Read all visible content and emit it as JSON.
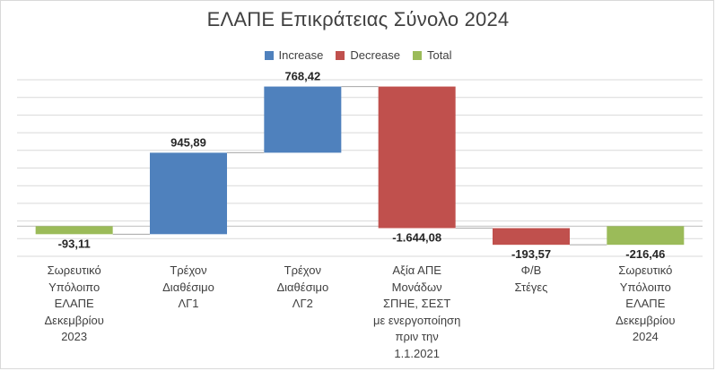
{
  "chart_data": {
    "type": "waterfall",
    "title": "ΕΛΑΠΕ Επικράτειας Σύνολο 2024",
    "legend": [
      {
        "name": "Increase",
        "color": "#4F81BD"
      },
      {
        "name": "Decrease",
        "color": "#C0504D"
      },
      {
        "name": "Total",
        "color": "#9BBB59"
      }
    ],
    "legend_position": "top",
    "grid": true,
    "categories": [
      "Σωρευτικό\nΥπόλοιπο\nΕΛΑΠΕ\nΔεκεμβρίου\n2023",
      "Τρέχον\nΔιαθέσιμο\nΛΓ1",
      "Τρέχον\nΔιαθέσιμο\nΛΓ2",
      "Αξία ΑΠΕ\nΜονάδων\nΣΠΗΕ, ΣΕΣΤ\nμε ενεργοποίηση\nπριν την\n1.1.2021",
      "Φ/Β\nΣτέγες",
      "Σωρευτικό\nΥπόλοιπο\nΕΛΑΠΕ\nΔεκεμβρίου\n2024"
    ],
    "values": [
      -93.11,
      945.89,
      768.42,
      -1644.08,
      -193.57,
      -216.46
    ],
    "value_labels": [
      "-93,11",
      "945,89",
      "768,42",
      "-1.644,08",
      "-193,57",
      "-216,46"
    ],
    "bar_types": [
      "Total",
      "Increase",
      "Increase",
      "Decrease",
      "Decrease",
      "Total"
    ],
    "ylim": [
      -350,
      1700
    ]
  }
}
